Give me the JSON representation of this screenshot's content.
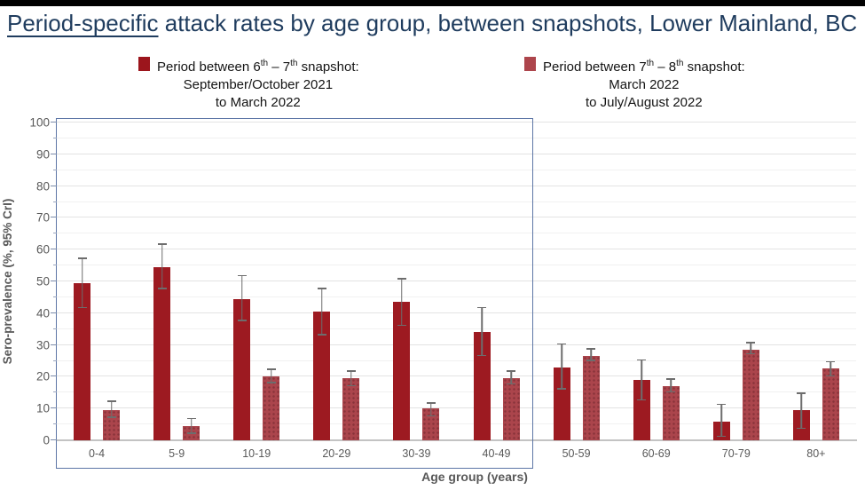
{
  "title": {
    "underlined": "Period-specific",
    "rest": " attack rates by age group, between snapshots, Lower Mainland, BC",
    "color": "#1f3c5e"
  },
  "legend": {
    "items": [
      {
        "swatch_color": "#9c151c",
        "lines": [
          "Period between 6th – 7th snapshot:",
          "September/October 2021",
          "to March 2022"
        ]
      },
      {
        "swatch_color": "#ad454c",
        "lines": [
          "Period between 7th – 8th snapshot:",
          "March 2022",
          "to July/August 2022"
        ]
      }
    ]
  },
  "chart_data": {
    "type": "bar",
    "title": "Period-specific attack rates by age group, between snapshots, Lower Mainland, BC",
    "xlabel": "Age group (years)",
    "ylabel": "Sero-prevalence (%, 95% CrI)",
    "ylim": [
      0,
      100
    ],
    "ytick_step": 10,
    "minor_grid_step": 5,
    "grid": true,
    "legend_position": "top",
    "categories": [
      "0-4",
      "5-9",
      "10-19",
      "20-29",
      "30-39",
      "40-49",
      "50-59",
      "60-69",
      "70-79",
      "80+"
    ],
    "series": [
      {
        "name": "Period between 6th – 7th snapshot: September/October 2021 to March 2022",
        "color": "#9d1a21",
        "values": [
          49.5,
          54.5,
          44.5,
          40.5,
          43.5,
          34.0,
          23.0,
          19.0,
          6.0,
          9.5
        ],
        "ci_low": [
          41.5,
          47.5,
          37.5,
          33.0,
          36.0,
          26.5,
          16.0,
          12.5,
          1.0,
          3.5
        ],
        "ci_high": [
          57.5,
          62.0,
          52.0,
          48.0,
          51.0,
          42.0,
          30.5,
          25.5,
          11.5,
          15.0
        ]
      },
      {
        "name": "Period between 7th – 8th snapshot: March 2022 to July/August 2022",
        "color": "#ab454c",
        "values": [
          9.5,
          4.5,
          20.0,
          19.5,
          10.0,
          19.5,
          26.5,
          17.0,
          28.5,
          22.5
        ],
        "ci_low": [
          7.0,
          2.0,
          18.0,
          17.0,
          7.5,
          17.5,
          25.0,
          15.0,
          27.0,
          20.0
        ],
        "ci_high": [
          12.5,
          7.0,
          22.5,
          22.0,
          12.0,
          22.0,
          29.0,
          19.5,
          31.0,
          25.0
        ]
      }
    ],
    "highlight_box": {
      "categories_covered": [
        "0-4",
        "5-9",
        "10-19",
        "20-29",
        "30-39",
        "40-49"
      ],
      "border_color": "#5d76a6"
    }
  }
}
